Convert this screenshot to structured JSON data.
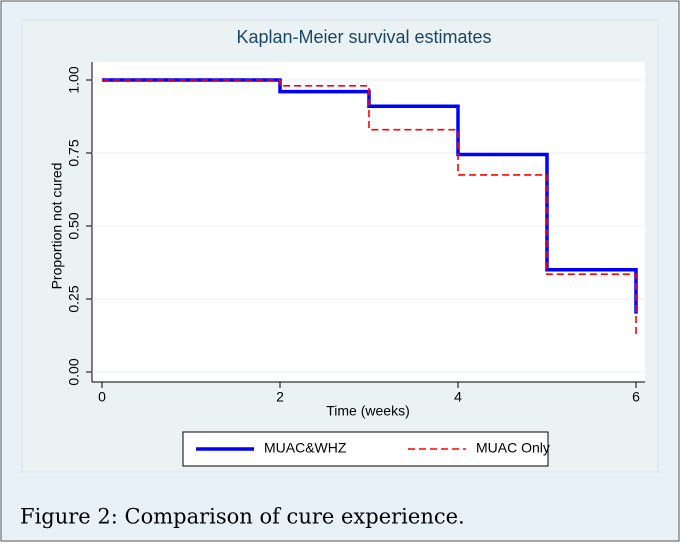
{
  "chart_data": {
    "type": "line",
    "step": "post",
    "title": "Kaplan-Meier survival estimates",
    "x_label": "Time (weeks)",
    "y_label": "Proportion not cured",
    "x": [
      0,
      2,
      3,
      4,
      5,
      6
    ],
    "series": [
      {
        "name": "MUAC&WHZ",
        "color": "#0000ff",
        "dash": false,
        "values": [
          1.0,
          0.96,
          0.91,
          0.745,
          0.35,
          0.2
        ]
      },
      {
        "name": "MUAC Only",
        "color": "#ff0000",
        "dash": true,
        "values": [
          1.0,
          0.98,
          0.83,
          0.675,
          0.335,
          0.13
        ]
      }
    ],
    "xlim": [
      0,
      6
    ],
    "xticks": [
      0,
      2,
      4,
      6
    ],
    "ylim": [
      0,
      1
    ],
    "yticks": [
      {
        "value": 0,
        "label": "0.00"
      },
      {
        "value": 0.25,
        "label": "0.25"
      },
      {
        "value": 0.5,
        "label": "0.50"
      },
      {
        "value": 0.75,
        "label": "0.75"
      },
      {
        "value": 1,
        "label": "1.00"
      }
    ],
    "grid": true,
    "legend": "bottom"
  },
  "caption": "Figure 2: Comparison of cure experience."
}
